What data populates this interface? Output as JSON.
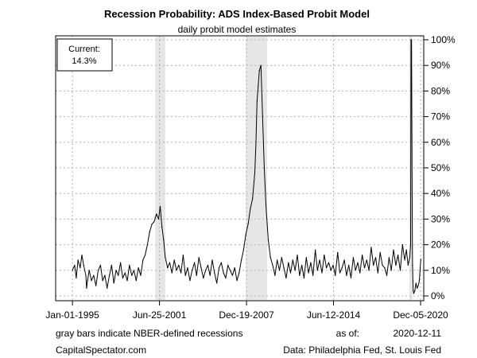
{
  "chart_data": {
    "type": "line",
    "title": "Recession Probability: ADS Index-Based Probit Model",
    "subtitle": "daily probit model estimates",
    "x_tick_labels": [
      "Jan-01-1995",
      "Jun-25-2001",
      "Dec-19-2007",
      "Jun-12-2014",
      "Dec-05-2020"
    ],
    "y_tick_labels": [
      "0%",
      "10%",
      "20%",
      "30%",
      "40%",
      "50%",
      "60%",
      "70%",
      "80%",
      "90%",
      "100%"
    ],
    "xlim": [
      "1993-10-01",
      "2021-03-01"
    ],
    "ylim": [
      0,
      100
    ],
    "y_unit": "%",
    "grid": true,
    "current_box": {
      "label": "Current:",
      "value": "14.3%"
    },
    "recession_bands": [
      {
        "start": "2001-03-01",
        "end": "2001-11-30"
      },
      {
        "start": "2007-12-01",
        "end": "2009-06-30"
      },
      {
        "start": "2020-02-01",
        "end": "2020-04-30"
      }
    ],
    "series": [
      {
        "color": "#000000",
        "x": [
          "1995-01-01",
          "1995-03-01",
          "1995-04-15",
          "1995-06-01",
          "1995-08-01",
          "1995-09-15",
          "1995-11-01",
          "1996-01-01",
          "1996-01-20",
          "1996-02-15",
          "1996-04-01",
          "1996-06-01",
          "1996-08-01",
          "1996-10-01",
          "1996-12-01",
          "1997-02-01",
          "1997-04-01",
          "1997-06-01",
          "1997-08-01",
          "1997-10-01",
          "1997-12-01",
          "1998-02-01",
          "1998-04-01",
          "1998-06-01",
          "1998-08-01",
          "1998-10-01",
          "1998-12-01",
          "1999-02-01",
          "1999-04-01",
          "1999-06-01",
          "1999-08-01",
          "1999-10-01",
          "1999-12-01",
          "2000-02-01",
          "2000-04-01",
          "2000-06-01",
          "2000-08-01",
          "2000-10-01",
          "2000-12-01",
          "2001-02-01",
          "2001-04-01",
          "2001-06-01",
          "2001-07-15",
          "2001-09-01",
          "2001-10-15",
          "2001-12-01",
          "2002-02-01",
          "2002-04-01",
          "2002-06-01",
          "2002-08-01",
          "2002-10-01",
          "2002-12-01",
          "2003-02-01",
          "2003-04-01",
          "2003-06-01",
          "2003-08-01",
          "2003-10-01",
          "2003-12-01",
          "2004-02-01",
          "2004-04-01",
          "2004-06-01",
          "2004-08-01",
          "2004-10-01",
          "2004-12-01",
          "2005-02-01",
          "2005-04-01",
          "2005-06-01",
          "2005-08-01",
          "2005-10-01",
          "2005-12-01",
          "2006-02-01",
          "2006-04-01",
          "2006-06-01",
          "2006-08-01",
          "2006-10-01",
          "2006-12-01",
          "2007-02-01",
          "2007-04-01",
          "2007-06-01",
          "2007-08-01",
          "2007-10-01",
          "2007-12-01",
          "2008-02-01",
          "2008-04-01",
          "2008-06-01",
          "2008-08-01",
          "2008-09-01",
          "2008-10-01",
          "2008-11-01",
          "2008-12-01",
          "2009-01-15",
          "2009-03-01",
          "2009-04-15",
          "2009-06-01",
          "2009-08-01",
          "2009-10-01",
          "2009-12-01",
          "2010-02-01",
          "2010-04-01",
          "2010-06-01",
          "2010-08-01",
          "2010-10-01",
          "2010-12-01",
          "2011-02-01",
          "2011-04-01",
          "2011-06-01",
          "2011-08-01",
          "2011-10-01",
          "2011-12-01",
          "2012-02-01",
          "2012-04-01",
          "2012-06-01",
          "2012-08-01",
          "2012-10-01",
          "2012-12-01",
          "2013-02-01",
          "2013-04-01",
          "2013-06-01",
          "2013-08-01",
          "2013-10-01",
          "2013-12-01",
          "2014-02-01",
          "2014-04-01",
          "2014-06-01",
          "2014-08-01",
          "2014-10-01",
          "2014-12-01",
          "2015-02-01",
          "2015-04-01",
          "2015-06-01",
          "2015-08-01",
          "2015-10-01",
          "2015-12-01",
          "2016-02-01",
          "2016-04-01",
          "2016-06-01",
          "2016-08-01",
          "2016-10-01",
          "2016-12-01",
          "2017-02-01",
          "2017-04-01",
          "2017-06-01",
          "2017-08-01",
          "2017-10-01",
          "2017-12-01",
          "2018-02-01",
          "2018-04-01",
          "2018-06-01",
          "2018-08-01",
          "2018-10-01",
          "2018-12-01",
          "2019-02-01",
          "2019-04-01",
          "2019-06-01",
          "2019-08-01",
          "2019-10-01",
          "2019-11-15",
          "2020-01-01",
          "2020-02-15",
          "2020-03-10",
          "2020-03-20",
          "2020-04-01",
          "2020-04-20",
          "2020-05-01",
          "2020-05-10",
          "2020-05-20",
          "2020-06-01",
          "2020-07-01",
          "2020-08-01",
          "2020-09-01",
          "2020-10-01",
          "2020-11-01",
          "2020-12-11"
        ],
        "y": [
          10,
          12,
          7,
          14,
          11,
          16,
          12,
          8,
          3,
          6,
          10,
          6,
          8,
          4,
          10,
          12,
          6,
          8,
          3,
          8,
          12,
          5,
          10,
          8,
          13,
          7,
          9,
          6,
          12,
          8,
          10,
          6,
          11,
          8,
          14,
          16,
          20,
          25,
          28,
          29,
          32,
          30,
          35,
          27,
          22,
          15,
          11,
          13,
          9,
          14,
          10,
          12,
          9,
          16,
          8,
          11,
          6,
          10,
          13,
          8,
          15,
          11,
          7,
          10,
          12,
          8,
          14,
          9,
          5,
          11,
          13,
          9,
          7,
          12,
          10,
          8,
          11,
          6,
          9,
          14,
          18,
          24,
          28,
          34,
          38,
          48,
          60,
          76,
          82,
          88,
          90,
          70,
          50,
          35,
          22,
          15,
          12,
          8,
          14,
          10,
          15,
          11,
          7,
          13,
          9,
          14,
          10,
          16,
          8,
          12,
          7,
          15,
          9,
          13,
          8,
          18,
          10,
          14,
          9,
          16,
          11,
          13,
          10,
          12,
          8,
          17,
          9,
          11,
          14,
          8,
          12,
          7,
          15,
          10,
          13,
          9,
          16,
          11,
          14,
          10,
          19,
          12,
          15,
          9,
          17,
          12,
          11,
          8,
          15,
          10,
          18,
          12,
          16,
          10,
          20,
          14,
          18,
          12,
          15,
          20,
          100,
          100,
          40,
          12,
          6,
          2,
          1,
          2,
          5,
          3,
          4,
          6,
          14.3
        ]
      }
    ],
    "footer": {
      "recession_note": "gray bars indicate NBER-defined recessions",
      "as_of_label": "as of:",
      "as_of_date": "2020-12-11",
      "source_left": "CapitalSpectator.com",
      "source_right": "Data: Philadelphia Fed, St. Louis Fed"
    }
  }
}
